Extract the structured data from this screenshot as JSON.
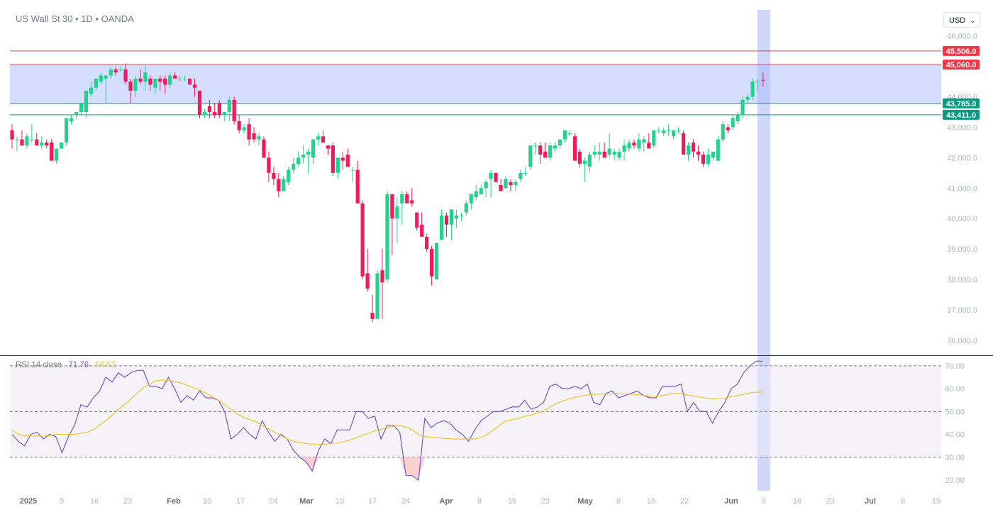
{
  "header": {
    "title": "US Wall St 30 • 1D • OANDA",
    "currency": "USD"
  },
  "chart_data": [
    {
      "type": "candlestick",
      "title": "US Wall St 30 • 1D • OANDA",
      "y_ticks": [
        "36,000.0",
        "37,000.0",
        "38,000.0",
        "39,000.0",
        "40,000.0",
        "41,000.0",
        "42,000.0",
        "43,000.0",
        "44,000.0",
        "45,000.0",
        "46,000.0"
      ],
      "ylim": [
        35600,
        46250
      ],
      "x_ticks": [
        "2025",
        "9",
        "16",
        "23",
        "Feb",
        "10",
        "17",
        "24",
        "Mar",
        "10",
        "17",
        "24",
        "Apr",
        "8",
        "15",
        "23",
        "May",
        "8",
        "15",
        "22",
        "Jun",
        "9",
        "16",
        "23",
        "Jul",
        "8",
        "15"
      ],
      "price_lines": [
        {
          "label": "45,506.0",
          "value": 45506,
          "color": "#f23645"
        },
        {
          "label": "45,060.0",
          "value": 45060,
          "color": "#f23645"
        },
        {
          "label": "43,785.0",
          "value": 43785,
          "color": "#089981"
        },
        {
          "label": "43,411.0",
          "value": 43411,
          "color": "#089981"
        }
      ],
      "zone": [
        43785,
        45060
      ],
      "colors": {
        "up": "#22d38d",
        "down": "#f4195b",
        "zone": "#d4dcff",
        "highlight": "#a9b7fb"
      },
      "ohlc": [
        [
          42.9,
          43.1,
          42.3,
          42.6
        ],
        [
          42.6,
          42.7,
          42.2,
          42.6
        ],
        [
          42.6,
          42.9,
          42.4,
          42.4
        ],
        [
          42.4,
          42.8,
          42.3,
          42.7
        ],
        [
          42.6,
          43.1,
          42.5,
          42.6
        ],
        [
          42.6,
          42.8,
          42.4,
          42.4
        ],
        [
          42.4,
          42.7,
          42.3,
          42.5
        ],
        [
          42.5,
          42.6,
          42.3,
          42.4
        ],
        [
          42.5,
          42.6,
          41.9,
          41.9
        ],
        [
          41.9,
          42.3,
          41.8,
          42.3
        ],
        [
          42.3,
          42.5,
          42.3,
          42.5
        ],
        [
          42.5,
          43.3,
          42.4,
          43.3
        ],
        [
          43.2,
          43.4,
          43.1,
          43.3
        ],
        [
          43.4,
          43.5,
          43.3,
          43.5
        ],
        [
          43.5,
          43.8,
          43.4,
          43.8
        ],
        [
          43.5,
          44.2,
          43.3,
          44.2
        ],
        [
          44.1,
          44.5,
          44.0,
          44.3
        ],
        [
          44.3,
          44.6,
          44.2,
          44.6
        ],
        [
          44.5,
          44.8,
          44.4,
          44.7
        ],
        [
          44.6,
          44.7,
          43.8,
          44.7
        ],
        [
          44.7,
          45.0,
          44.6,
          44.9
        ],
        [
          44.9,
          45.0,
          44.7,
          44.8
        ],
        [
          44.9,
          45.0,
          44.8,
          44.9
        ],
        [
          44.9,
          45.1,
          44.4,
          44.5
        ],
        [
          44.5,
          44.6,
          43.8,
          44.2
        ],
        [
          44.2,
          44.7,
          44.0,
          44.6
        ],
        [
          44.6,
          44.9,
          44.4,
          44.5
        ],
        [
          44.5,
          45.0,
          44.2,
          44.8
        ],
        [
          44.6,
          44.7,
          44.2,
          44.4
        ],
        [
          44.3,
          44.6,
          44.1,
          44.6
        ],
        [
          44.6,
          44.7,
          44.2,
          44.5
        ],
        [
          44.6,
          44.7,
          44.1,
          44.4
        ],
        [
          44.4,
          44.8,
          44.3,
          44.7
        ],
        [
          44.7,
          44.8,
          44.6,
          44.6
        ],
        [
          44.6,
          44.7,
          44.5,
          44.6
        ],
        [
          44.6,
          44.7,
          44.5,
          44.6
        ],
        [
          44.6,
          44.6,
          44.4,
          44.4
        ],
        [
          44.4,
          44.6,
          44.0,
          44.3
        ],
        [
          44.2,
          44.2,
          43.3,
          43.4
        ],
        [
          43.4,
          43.6,
          43.3,
          43.5
        ],
        [
          43.7,
          43.9,
          43.3,
          43.5
        ],
        [
          43.5,
          43.8,
          43.3,
          43.4
        ],
        [
          43.8,
          43.9,
          43.3,
          43.4
        ],
        [
          43.4,
          43.5,
          43.2,
          43.5
        ],
        [
          43.5,
          44.0,
          43.2,
          43.9
        ],
        [
          43.9,
          44.0,
          43.1,
          43.2
        ],
        [
          43.2,
          43.4,
          42.8,
          42.9
        ],
        [
          42.9,
          43.1,
          42.8,
          43.0
        ],
        [
          43.1,
          43.3,
          42.4,
          42.6
        ],
        [
          42.8,
          43.0,
          42.5,
          42.6
        ],
        [
          42.6,
          42.8,
          42.4,
          42.7
        ],
        [
          42.6,
          42.7,
          42.0,
          42.0
        ],
        [
          42.0,
          42.2,
          41.2,
          41.5
        ],
        [
          41.5,
          41.7,
          41.1,
          41.3
        ],
        [
          41.3,
          41.5,
          40.7,
          40.9
        ],
        [
          40.9,
          41.4,
          40.9,
          41.3
        ],
        [
          41.2,
          41.7,
          41.1,
          41.6
        ],
        [
          41.6,
          42.0,
          41.5,
          41.8
        ],
        [
          41.8,
          42.2,
          41.7,
          42.0
        ],
        [
          42.0,
          42.4,
          41.8,
          42.1
        ],
        [
          42.1,
          42.3,
          41.5,
          42.2
        ],
        [
          42.0,
          42.6,
          41.8,
          42.6
        ],
        [
          42.6,
          42.8,
          42.4,
          42.7
        ],
        [
          42.7,
          42.9,
          42.5,
          42.5
        ],
        [
          42.4,
          42.4,
          42.1,
          42.3
        ],
        [
          42.4,
          42.5,
          41.4,
          41.5
        ],
        [
          41.5,
          42.0,
          41.3,
          42.0
        ],
        [
          42.0,
          42.2,
          41.6,
          41.9
        ],
        [
          42.1,
          42.3,
          41.7,
          41.7
        ],
        [
          41.6,
          41.7,
          41.2,
          41.6
        ],
        [
          41.6,
          41.9,
          40.6,
          40.5
        ],
        [
          40.5,
          40.6,
          38.0,
          38.1
        ],
        [
          38.2,
          39.0,
          37.6,
          37.7
        ],
        [
          36.9,
          37.5,
          36.6,
          36.7
        ],
        [
          36.7,
          38.3,
          36.8,
          38.2
        ],
        [
          38.3,
          39.0,
          36.7,
          37.9
        ],
        [
          38.0,
          40.9,
          37.9,
          40.8
        ],
        [
          40.8,
          40.8,
          38.8,
          40.0
        ],
        [
          40.0,
          40.7,
          39.2,
          40.4
        ],
        [
          40.5,
          40.9,
          39.8,
          40.8
        ],
        [
          40.8,
          40.9,
          40.5,
          40.5
        ],
        [
          40.6,
          41.0,
          40.4,
          40.5
        ],
        [
          40.2,
          40.2,
          39.6,
          39.7
        ],
        [
          39.8,
          40.2,
          39.4,
          39.4
        ],
        [
          39.4,
          39.5,
          38.9,
          39.0
        ],
        [
          39.0,
          39.1,
          37.8,
          38.1
        ],
        [
          38.0,
          39.2,
          38.0,
          39.2
        ],
        [
          39.3,
          40.3,
          39.3,
          40.1
        ],
        [
          40.1,
          40.2,
          39.4,
          39.8
        ],
        [
          39.8,
          40.2,
          39.3,
          40.3
        ],
        [
          40.0,
          40.3,
          39.7,
          40.1
        ],
        [
          40.1,
          40.2,
          39.9,
          40.1
        ],
        [
          40.2,
          40.6,
          40.1,
          40.5
        ],
        [
          40.5,
          40.8,
          40.3,
          40.8
        ],
        [
          40.7,
          41.1,
          40.6,
          40.9
        ],
        [
          40.8,
          41.1,
          40.8,
          41.0
        ],
        [
          41.0,
          41.3,
          40.7,
          41.2
        ],
        [
          41.3,
          41.6,
          40.7,
          41.5
        ],
        [
          41.5,
          41.5,
          41.2,
          41.2
        ],
        [
          41.1,
          41.3,
          40.9,
          40.9
        ],
        [
          41.0,
          41.4,
          41.0,
          41.3
        ],
        [
          41.2,
          41.3,
          40.9,
          41.1
        ],
        [
          41.1,
          41.3,
          40.9,
          41.2
        ],
        [
          41.3,
          41.6,
          41.2,
          41.5
        ],
        [
          41.5,
          41.7,
          41.4,
          41.5
        ],
        [
          41.7,
          42.4,
          41.6,
          42.4
        ],
        [
          42.4,
          42.5,
          42.1,
          42.4
        ],
        [
          42.4,
          42.5,
          41.8,
          42.1
        ],
        [
          42.2,
          42.5,
          42.0,
          42.0
        ],
        [
          42.0,
          42.5,
          41.9,
          42.4
        ],
        [
          42.3,
          42.5,
          42.2,
          42.4
        ],
        [
          42.4,
          42.6,
          42.3,
          42.6
        ],
        [
          42.6,
          42.9,
          42.5,
          42.9
        ],
        [
          42.8,
          42.9,
          42.7,
          42.8
        ],
        [
          42.7,
          42.8,
          41.9,
          41.9
        ],
        [
          42.2,
          42.3,
          41.7,
          41.8
        ],
        [
          41.8,
          42.0,
          41.2,
          41.9
        ],
        [
          41.7,
          42.2,
          41.5,
          42.1
        ],
        [
          42.1,
          42.4,
          42.0,
          42.2
        ],
        [
          42.1,
          42.5,
          41.9,
          42.2
        ],
        [
          42.2,
          42.5,
          42.0,
          42.0
        ],
        [
          42.1,
          42.8,
          42.0,
          42.3
        ],
        [
          42.1,
          42.3,
          41.9,
          42.2
        ],
        [
          42.0,
          42.3,
          41.9,
          42.2
        ],
        [
          42.2,
          42.6,
          41.9,
          42.4
        ],
        [
          42.3,
          42.6,
          42.2,
          42.5
        ],
        [
          42.5,
          42.6,
          42.3,
          42.4
        ],
        [
          42.3,
          42.8,
          42.2,
          42.6
        ],
        [
          42.5,
          42.7,
          42.2,
          42.6
        ],
        [
          42.5,
          42.8,
          42.3,
          42.3
        ],
        [
          42.4,
          42.9,
          42.3,
          42.9
        ],
        [
          42.9,
          43.0,
          42.8,
          42.9
        ],
        [
          42.8,
          43.0,
          42.7,
          42.9
        ],
        [
          42.9,
          43.1,
          42.7,
          42.9
        ],
        [
          42.7,
          42.9,
          42.6,
          42.9
        ],
        [
          42.9,
          43.0,
          42.8,
          42.9
        ],
        [
          42.8,
          42.9,
          42.1,
          42.1
        ],
        [
          42.1,
          42.5,
          41.9,
          42.4
        ],
        [
          42.5,
          42.6,
          42.0,
          42.2
        ],
        [
          42.2,
          42.4,
          41.9,
          42.1
        ],
        [
          42.1,
          42.2,
          41.7,
          41.8
        ],
        [
          41.8,
          42.3,
          41.7,
          42.1
        ],
        [
          42.0,
          42.2,
          41.9,
          42.2
        ],
        [
          41.9,
          42.7,
          41.9,
          42.6
        ],
        [
          42.6,
          43.2,
          42.5,
          43.1
        ],
        [
          43.0,
          43.1,
          42.8,
          42.9
        ],
        [
          43.0,
          43.4,
          42.9,
          43.3
        ],
        [
          43.2,
          43.5,
          43.1,
          43.4
        ],
        [
          43.4,
          44.0,
          43.3,
          43.9
        ],
        [
          43.9,
          44.1,
          43.8,
          44.0
        ],
        [
          44.0,
          44.6,
          43.9,
          44.5
        ],
        [
          44.5,
          44.6,
          44.2,
          44.5
        ]
      ]
    },
    {
      "type": "line",
      "title": "RSI 14 close",
      "legend": [
        "71.76",
        "58.53"
      ],
      "y_ticks": [
        "20.00",
        "30.00",
        "40.00",
        "50.00",
        "60.00",
        "70.00"
      ],
      "ylim": [
        16,
        74
      ],
      "levels": [
        30,
        50,
        70
      ],
      "series": [
        {
          "color": "#7e57c2",
          "values": [
            40,
            37,
            35,
            40,
            41,
            38,
            40,
            39,
            32,
            39,
            44,
            53,
            52,
            56,
            59,
            65,
            63,
            67,
            65,
            67,
            68,
            68,
            61,
            61,
            60,
            65,
            60,
            54,
            57,
            55,
            59,
            56,
            56,
            55,
            50,
            38,
            40,
            43,
            40,
            38,
            46,
            41,
            37,
            40,
            38,
            33,
            30,
            28,
            24,
            33,
            38,
            36,
            42,
            42,
            42,
            50,
            50,
            47,
            48,
            38,
            44,
            44,
            41,
            22,
            22,
            20,
            47,
            43,
            45,
            46,
            45,
            42,
            40,
            37,
            42,
            46,
            48,
            50,
            50,
            51,
            52,
            52,
            55,
            51,
            52,
            54,
            61,
            62,
            60,
            60,
            61,
            60,
            62,
            54,
            53,
            58,
            59,
            56,
            57,
            58,
            59,
            57,
            56,
            56,
            61,
            61,
            61,
            62,
            50,
            54,
            50,
            50,
            45,
            50,
            54,
            60,
            62,
            67,
            70,
            72,
            72
          ]
        },
        {
          "color": "#f0c419",
          "values": [
            42,
            40,
            39.5,
            39.3,
            39.2,
            39.3,
            39.5,
            40,
            40,
            40,
            40,
            40.5,
            41,
            42,
            44,
            46,
            48.5,
            51,
            53,
            55.5,
            58,
            60.5,
            62,
            63.5,
            63.8,
            63.6,
            63.2,
            62.5,
            61.5,
            60.5,
            59.5,
            58,
            56.5,
            55,
            53,
            51,
            49,
            47.5,
            46.5,
            45.5,
            44,
            42.5,
            41,
            39.5,
            38,
            37,
            36.5,
            36,
            35.8,
            35.5,
            35.6,
            36,
            36.3,
            36.8,
            37.5,
            38.5,
            39.5,
            40.5,
            41.5,
            42.2,
            43,
            43.5,
            44,
            43.2,
            42,
            40,
            39,
            38.8,
            38.6,
            38.3,
            38.1,
            38,
            38,
            38,
            38,
            38.5,
            40,
            42,
            44,
            46,
            46.5,
            47,
            48,
            48.5,
            49.2,
            50,
            52,
            53.5,
            54.5,
            55.5,
            56.2,
            56.8,
            57.3,
            57.5,
            57.6,
            57.6,
            57.7,
            57.8,
            57.7,
            57.6,
            57.4,
            57,
            56.7,
            56.6,
            57,
            57.5,
            58,
            57.8,
            57.3,
            56.8,
            56.3,
            55.9,
            55.6,
            55.7,
            56,
            56.5,
            57,
            57.5,
            58.2,
            58.5,
            58.53
          ]
        }
      ],
      "x_ticks": [
        "2025",
        "9",
        "16",
        "23",
        "Feb",
        "10",
        "17",
        "24",
        "Mar",
        "10",
        "17",
        "24",
        "Apr",
        "8",
        "15",
        "23",
        "May",
        "8",
        "15",
        "22",
        "Jun",
        "9",
        "16",
        "23",
        "Jul",
        "8",
        "15"
      ]
    }
  ]
}
